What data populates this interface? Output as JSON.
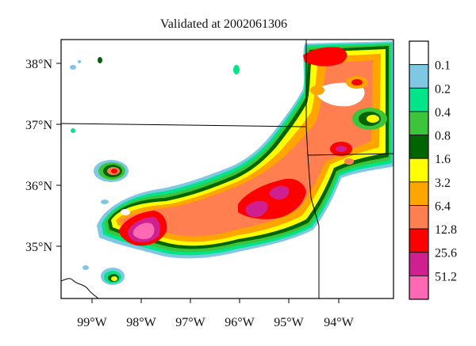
{
  "title": "Validated at 2002061306",
  "lat_labels": [
    "38°N",
    "37°N",
    "36°N",
    "35°N"
  ],
  "lon_labels": [
    "99°W",
    "98°W",
    "97°W",
    "96°W",
    "95°W",
    "94°W"
  ],
  "legend": {
    "levels": [
      "0.1",
      "0.2",
      "0.4",
      "0.8",
      "1.6",
      "3.2",
      "6.4",
      "12.8",
      "25.6",
      "51.2"
    ],
    "colors": [
      "#ffffff",
      "#7ec8e3",
      "#00e58a",
      "#3cc43a",
      "#006400",
      "#ffff00",
      "#ffa500",
      "#ff7f50",
      "#ff0000",
      "#d02090",
      "#ff69b4"
    ]
  },
  "colors": {
    "frame": "#000000",
    "background": "#ffffff"
  }
}
